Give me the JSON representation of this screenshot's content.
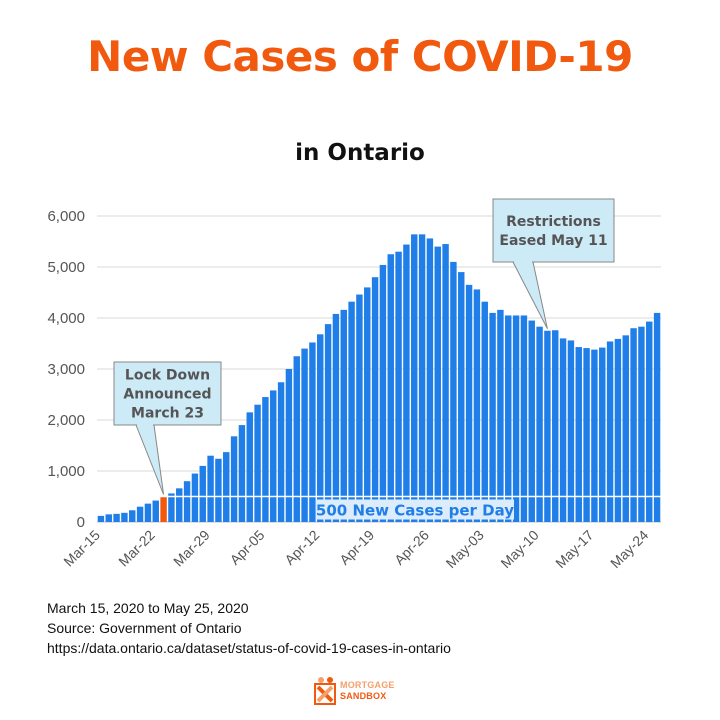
{
  "title": "New Cases of COVID-19",
  "subtitle": "in Ontario",
  "colors": {
    "bar": "#1f7ee8",
    "highlight": "#f0590e",
    "title": "#f0590e",
    "callout_bg": "#cdeaf7",
    "grid": "#d9d9d9"
  },
  "chart_data": {
    "type": "bar",
    "ylim": [
      0,
      6000
    ],
    "yticks": [
      0,
      1000,
      2000,
      3000,
      4000,
      5000,
      6000
    ],
    "ytick_labels": [
      "0",
      "1,000",
      "2,000",
      "3,000",
      "4,000",
      "5,000",
      "6,000"
    ],
    "xtick_labels": [
      {
        "index": 0,
        "label": "Mar-15"
      },
      {
        "index": 7,
        "label": "Mar-22"
      },
      {
        "index": 14,
        "label": "Mar-29"
      },
      {
        "index": 21,
        "label": "Apr-05"
      },
      {
        "index": 28,
        "label": "Apr-12"
      },
      {
        "index": 35,
        "label": "Apr-19"
      },
      {
        "index": 42,
        "label": "Apr-26"
      },
      {
        "index": 49,
        "label": "May-03"
      },
      {
        "index": 56,
        "label": "May-10"
      },
      {
        "index": 63,
        "label": "May-17"
      },
      {
        "index": 70,
        "label": "May-24"
      }
    ],
    "highlight_index": 8,
    "values": [
      120,
      150,
      160,
      180,
      230,
      300,
      360,
      420,
      500,
      560,
      660,
      800,
      950,
      1100,
      1300,
      1240,
      1370,
      1680,
      1900,
      2150,
      2300,
      2450,
      2580,
      2740,
      3000,
      3250,
      3400,
      3520,
      3680,
      3880,
      4080,
      4160,
      4320,
      4460,
      4600,
      4800,
      5040,
      5250,
      5300,
      5440,
      5640,
      5640,
      5560,
      5400,
      5450,
      5100,
      4900,
      4650,
      4560,
      4320,
      4100,
      4160,
      4050,
      4050,
      4050,
      3950,
      3830,
      3750,
      3760,
      3600,
      3560,
      3430,
      3410,
      3380,
      3420,
      3540,
      3590,
      3660,
      3800,
      3830,
      3930,
      4100
    ],
    "reference_line": {
      "value": 500,
      "label": "500 New Cases per Day"
    },
    "annotations": [
      {
        "text_lines": [
          "Lock Down",
          "Announced",
          "March 23"
        ],
        "index": 8
      },
      {
        "text_lines": [
          "Restrictions",
          "Eased May 11"
        ],
        "index": 57
      }
    ]
  },
  "source": {
    "line1": "March 15, 2020 to May 25, 2020",
    "line2": "Source: Government of Ontario",
    "line3": "https://data.ontario.ca/dataset/status-of-covid-19-cases-in-ontario"
  },
  "logo": {
    "line1": "MORTGAGE",
    "line2": "SANDBOX"
  }
}
